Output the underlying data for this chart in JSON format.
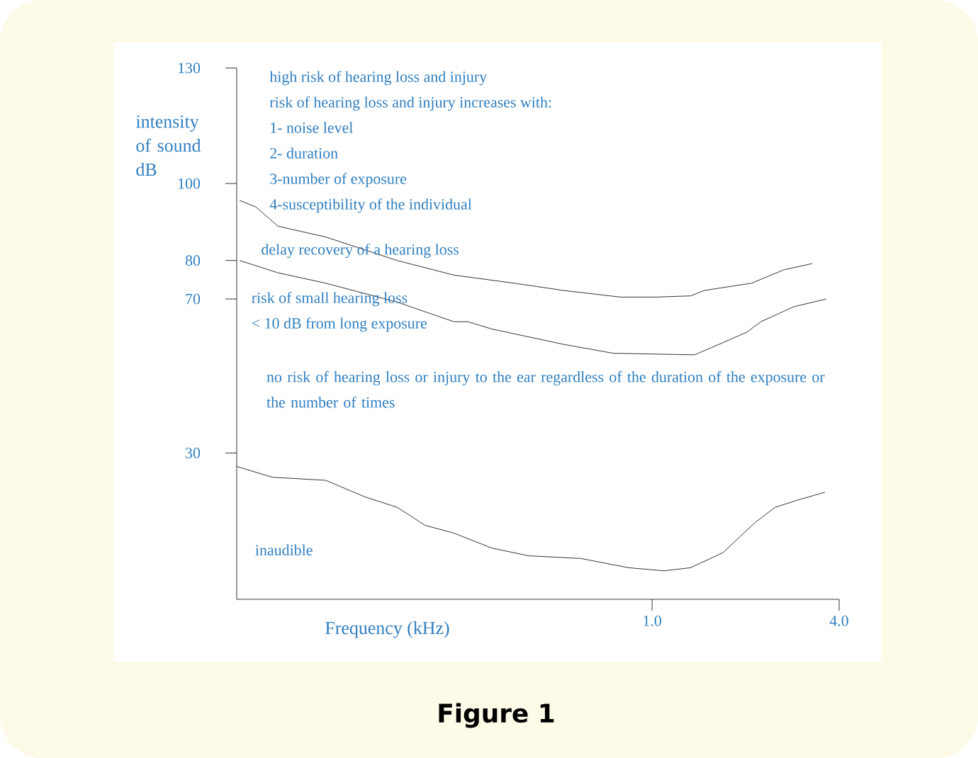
{
  "chart_data": {
    "type": "line",
    "xlabel": "Frequency (kHz)",
    "ylabel": "intensity of sound dB",
    "log": "x",
    "xlim": [
      0.046,
      4.0
    ],
    "xticks": [
      {
        "value": 1.0,
        "label": "1.0"
      },
      {
        "value": 4.0,
        "label": "4.0"
      }
    ],
    "ylim": [
      -8,
      130
    ],
    "yticks": [
      30,
      70,
      80,
      100,
      130
    ],
    "grid": false,
    "marker": "none",
    "line_style": "solid",
    "series": [
      {
        "color": "#000000",
        "x": [
          0.047,
          0.053,
          0.0625,
          0.089,
          0.151,
          0.23,
          0.36,
          0.52,
          0.79,
          1.03,
          1.33,
          1.47,
          2.09,
          2.66,
          3.28
        ],
        "values": [
          95.6,
          93.9,
          88.9,
          86.1,
          80,
          76.2,
          74.1,
          72.2,
          70.5,
          70.5,
          70.8,
          72.2,
          74.1,
          77.6,
          79.2
        ]
      },
      {
        "color": "#000000",
        "x": [
          0.047,
          0.0625,
          0.089,
          0.151,
          0.23,
          0.255,
          0.305,
          0.52,
          0.75,
          1.37,
          1.64,
          2.02,
          2.24,
          2.86,
          3.64
        ],
        "values": [
          80,
          76.8,
          74.1,
          69.2,
          64.1,
          64.1,
          62.2,
          58.2,
          55.9,
          55.5,
          58.2,
          61.4,
          64.1,
          68.0,
          70
        ]
      },
      {
        "color": "#000000",
        "x": [
          0.046,
          0.06,
          0.089,
          0.119,
          0.151,
          0.186,
          0.23,
          0.305,
          0.4,
          0.59,
          0.84,
          1.09,
          1.33,
          1.69,
          2.15,
          2.49,
          2.95,
          3.6
        ],
        "values": [
          26.5,
          23.7,
          22.9,
          18.6,
          15.9,
          11.2,
          9.2,
          5.3,
          3.3,
          2.6,
          0.2,
          -0.6,
          0.2,
          4.1,
          12.0,
          15.9,
          17.8,
          19.8
        ]
      }
    ],
    "annotations": [
      "high risk of hearing loss and injury",
      "risk of hearing loss and injury increases with:",
      "1- noise level",
      "2- duration",
      "3-number of exposure",
      "4-susceptibility of the individual",
      "delay recovery of a hearing loss",
      "risk of small hearing loss",
      "< 10 dB from long exposure",
      "no risk of hearing loss or injury to the ear regardless of the duration of the exposure or the number of times",
      "inaudible",
      "Figure 1"
    ]
  }
}
